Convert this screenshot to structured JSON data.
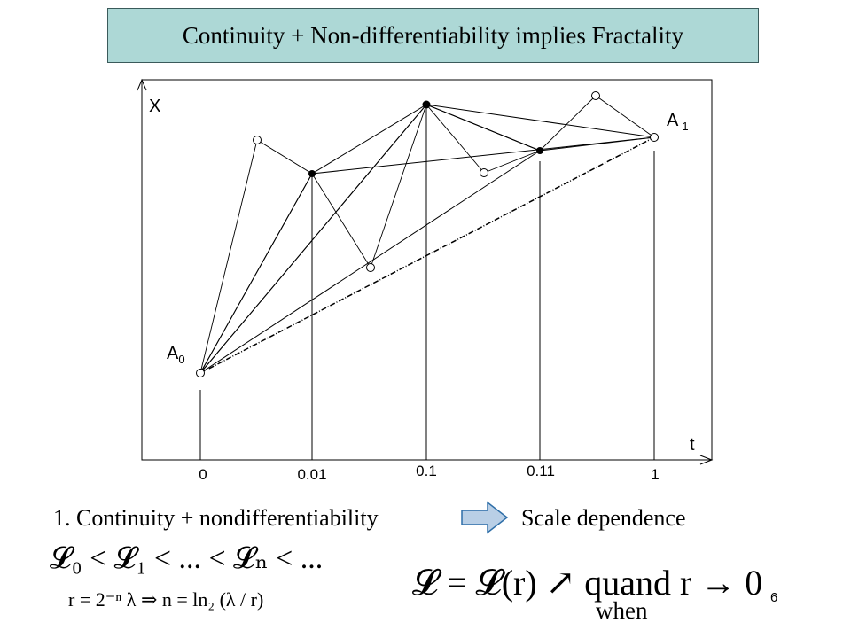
{
  "title": "Continuity + Non-differentiability implies Fractality",
  "axis": {
    "y_label": "X",
    "x_label": "t"
  },
  "ticks": [
    "0",
    "0.01",
    "0.1",
    "0.11",
    "1"
  ],
  "points": {
    "A0": {
      "name": "A",
      "sub": "0"
    },
    "A1": {
      "name": "A",
      "sub": "1"
    }
  },
  "text": {
    "line1_left": "1. Continuity + nondifferentiability",
    "line1_right": "Scale dependence",
    "lengths_chain": "𝓛₀ < 𝓛₁ < ... < 𝓛ₙ < ...",
    "scale_law": "𝓛 = 𝓛(r) ↗ quand r → 0",
    "resolution_formula": "r = 2⁻ⁿ λ ⇒ n = ln₂ (λ / r)",
    "when": "when",
    "page_number": "6"
  },
  "colors": {
    "title_bg": "#add8d6",
    "arrow_fill": "#b9cfe6",
    "arrow_stroke": "#2f6fa8"
  }
}
